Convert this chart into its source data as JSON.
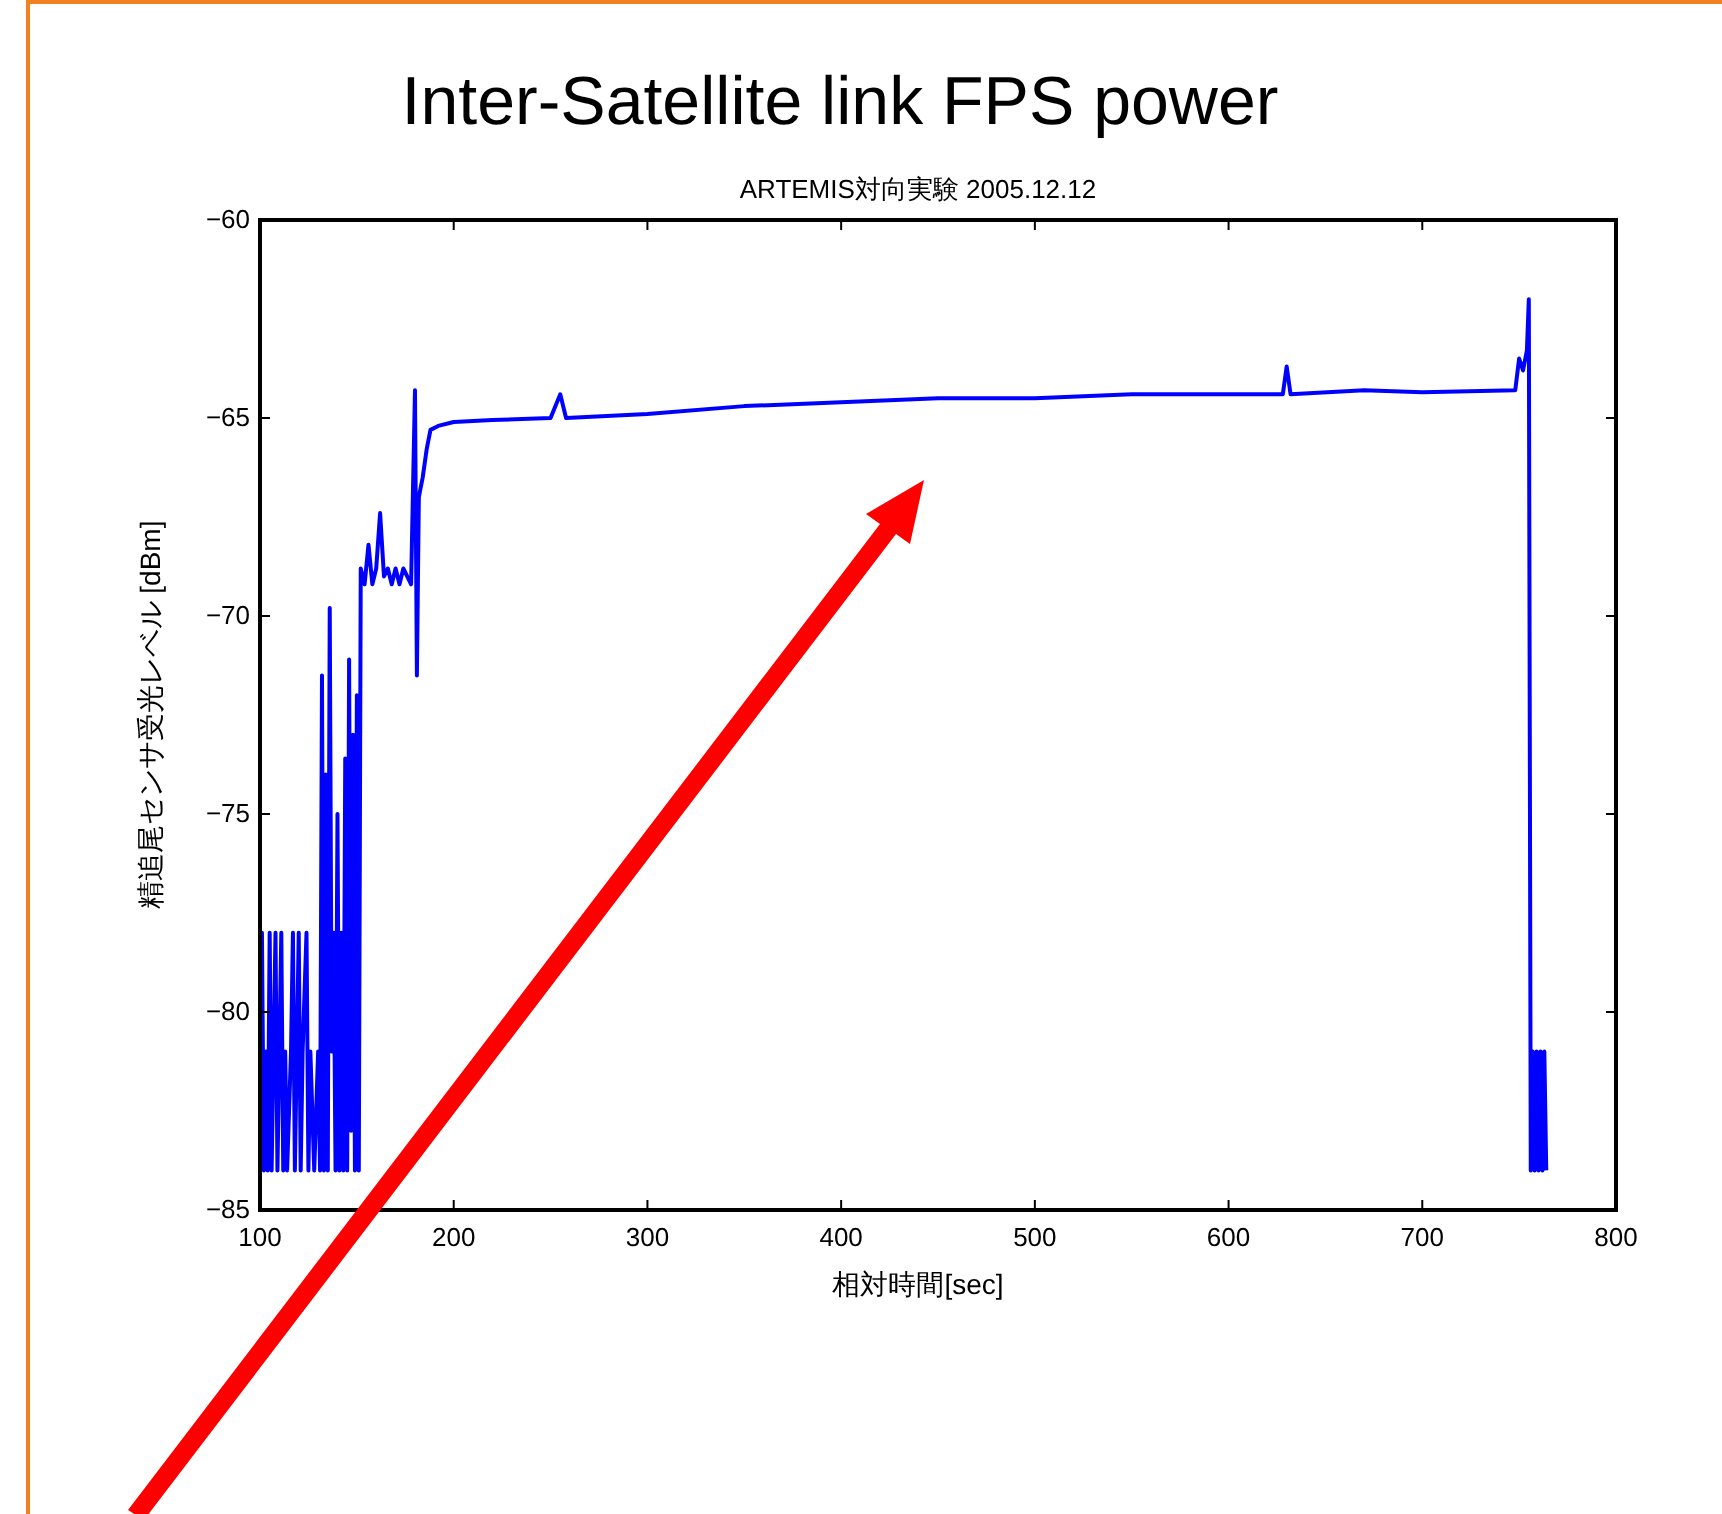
{
  "chart_data": {
    "type": "line",
    "title": "Inter-Satellite link FPS power",
    "subtitle": "ARTEMIS対向実験 2005.12.12",
    "xlabel": "相対時間[sec]",
    "ylabel": "精追尾センサ受光レベル [dBm]",
    "xlim": [
      100,
      800
    ],
    "xticks": [
      100,
      200,
      300,
      400,
      500,
      600,
      700,
      800
    ],
    "ylim": [
      -85,
      -60
    ],
    "yticks": [
      -85,
      -80,
      -75,
      -70,
      -65,
      -60
    ],
    "grid": false,
    "marker": "none",
    "line_style": "solid",
    "series": [
      {
        "color": "#0000ff",
        "x": [
          100,
          101,
          102,
          103,
          104,
          105,
          106,
          107,
          108,
          109,
          110,
          111,
          112,
          113,
          114,
          116,
          117,
          118,
          120,
          121,
          122,
          124,
          125,
          126,
          128,
          130,
          131,
          132,
          133,
          134,
          135,
          136,
          137,
          138,
          139,
          140,
          141,
          142,
          143,
          144,
          145,
          146,
          147,
          148,
          149,
          150,
          151,
          152,
          154,
          156,
          158,
          160,
          162,
          164,
          166,
          168,
          170,
          172,
          174,
          176,
          178,
          180,
          181,
          182,
          184,
          186,
          188,
          192,
          200,
          220,
          250,
          255,
          258,
          300,
          350,
          400,
          450,
          500,
          550,
          600,
          628,
          630,
          632,
          670,
          700,
          748,
          750,
          752,
          754,
          755,
          756,
          757,
          758,
          759,
          760,
          761,
          762,
          763,
          764
        ],
        "values": [
          -84,
          -78,
          -84,
          -81,
          -84,
          -78,
          -84,
          -81,
          -78,
          -84,
          -81,
          -78,
          -84,
          -81,
          -84,
          -81,
          -78,
          -84,
          -78,
          -84,
          -81,
          -78,
          -84,
          -81,
          -84,
          -81,
          -84,
          -71.5,
          -84,
          -74,
          -84,
          -69.8,
          -81,
          -78,
          -84,
          -75,
          -84,
          -78,
          -84,
          -73.6,
          -84,
          -71.1,
          -83,
          -73,
          -84,
          -72,
          -84,
          -68.8,
          -69.2,
          -68.2,
          -69.2,
          -68.8,
          -67.4,
          -69,
          -68.8,
          -69.2,
          -68.8,
          -69.2,
          -68.8,
          -69,
          -69.2,
          -64.3,
          -71.5,
          -67,
          -66.5,
          -65.8,
          -65.3,
          -65.2,
          -65.1,
          -65.05,
          -65,
          -64.4,
          -65,
          -64.9,
          -64.7,
          -64.6,
          -64.5,
          -64.5,
          -64.4,
          -64.4,
          -64.4,
          -63.7,
          -64.4,
          -64.3,
          -64.35,
          -64.3,
          -63.5,
          -63.8,
          -63.3,
          -62,
          -84,
          -81,
          -84,
          -81,
          -84,
          -81,
          -84,
          -81,
          -84
        ]
      }
    ]
  }
}
